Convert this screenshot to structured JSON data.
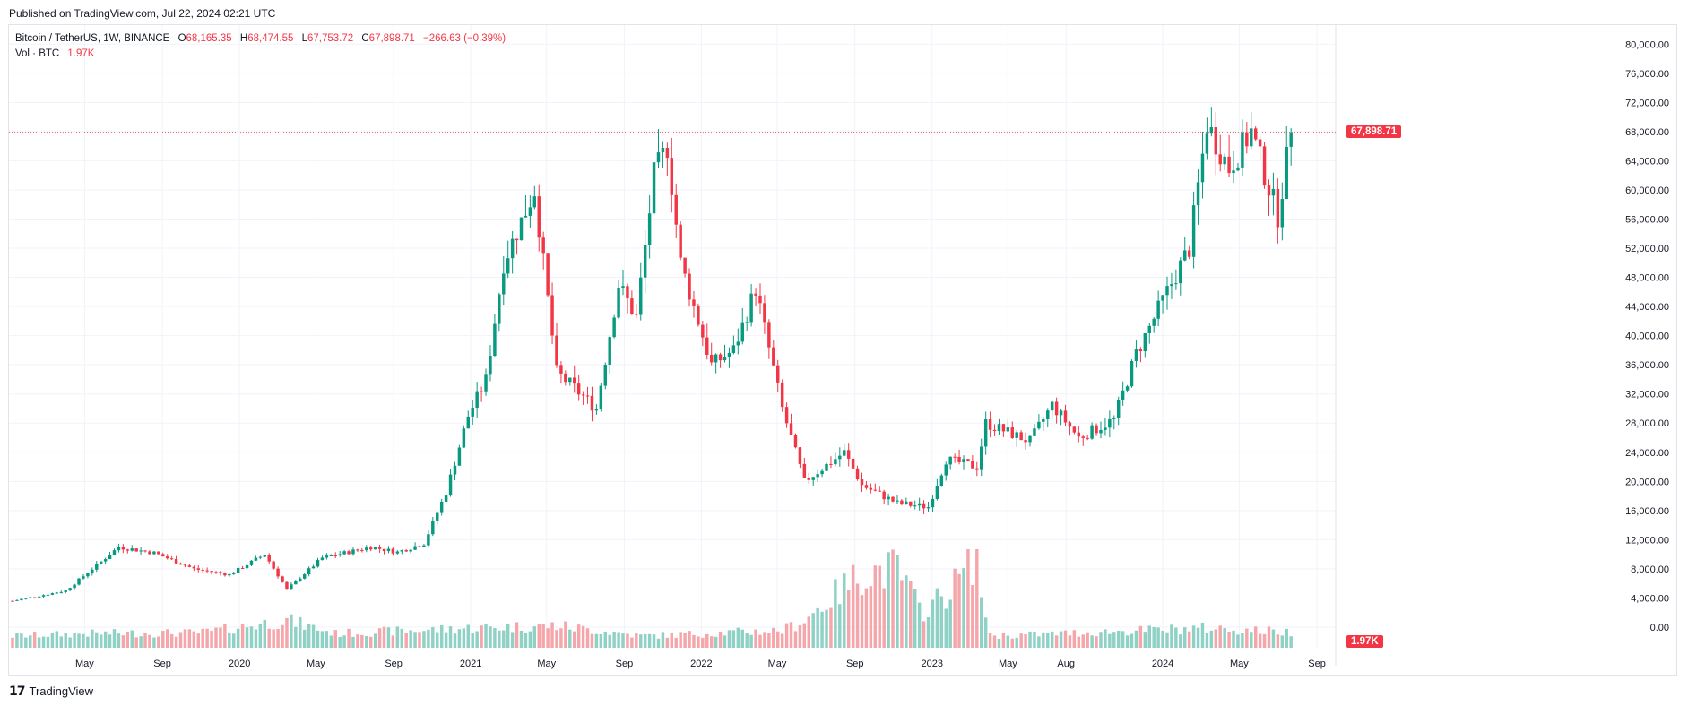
{
  "header": {
    "published": "Published on TradingView.com, Jul 22, 2024 02:21 UTC"
  },
  "legend": {
    "symbol": "Bitcoin / TetherUS, 1W, BINANCE",
    "open_label": "O",
    "open": "68,165.35",
    "high_label": "H",
    "high": "68,474.55",
    "low_label": "L",
    "low": "67,753.72",
    "close_label": "C",
    "close": "67,898.71",
    "change": "−266.63 (−0.39%)",
    "vol_label": "Vol · BTC",
    "vol_value": "1.97K"
  },
  "footer": {
    "brand": "TradingView",
    "logo_icon": "tradingview-logo-icon"
  },
  "colors": {
    "up": "#089981",
    "down": "#f23645",
    "vol_up": "#8fd1c5",
    "vol_down": "#f5a6aa",
    "grid": "#f0f3fa"
  },
  "chart_data": {
    "type": "candlestick",
    "symbol": "BTCUSDT",
    "interval": "1W",
    "y_ticks": [
      0,
      4000,
      8000,
      12000,
      16000,
      20000,
      24000,
      28000,
      32000,
      36000,
      40000,
      44000,
      48000,
      52000,
      56000,
      60000,
      64000,
      68000,
      72000,
      76000,
      80000
    ],
    "y_tick_labels": [
      "0.00",
      "4,000.00",
      "8,000.00",
      "12,000.00",
      "16,000.00",
      "20,000.00",
      "24,000.00",
      "28,000.00",
      "32,000.00",
      "36,000.00",
      "40,000.00",
      "44,000.00",
      "48,000.00",
      "52,000.00",
      "56,000.00",
      "60,000.00",
      "64,000.00",
      "68,000.00",
      "72,000.00",
      "76,000.00",
      "80,000.00"
    ],
    "x_ticks": [
      "2019-05-01",
      "2019-09-01",
      "2020-01-01",
      "2020-05-01",
      "2020-09-01",
      "2021-01-01",
      "2021-05-01",
      "2021-09-01",
      "2022-01-01",
      "2022-05-01",
      "2022-09-01",
      "2023-01-01",
      "2023-05-01",
      "2023-08-01",
      "2024-01-01",
      "2024-05-01",
      "2024-09-01"
    ],
    "x_tick_labels": [
      "May",
      "Sep",
      "2020",
      "May",
      "Sep",
      "2021",
      "May",
      "Sep",
      "2022",
      "May",
      "Sep",
      "2023",
      "May",
      "Aug",
      "2024",
      "May",
      "Sep"
    ],
    "last_price": 67898.71,
    "last_price_label": "67,898.71",
    "last_volume_label": "1.97K",
    "anchors_close": [
      [
        "2019-01-07",
        3600
      ],
      [
        "2019-04-01",
        5000
      ],
      [
        "2019-06-24",
        11000
      ],
      [
        "2019-08-19",
        10200
      ],
      [
        "2019-10-21",
        8000
      ],
      [
        "2019-12-16",
        7200
      ],
      [
        "2020-02-10",
        10000
      ],
      [
        "2020-03-16",
        5200
      ],
      [
        "2020-05-11",
        9500
      ],
      [
        "2020-07-27",
        11000
      ],
      [
        "2020-09-07",
        10300
      ],
      [
        "2020-10-19",
        11500
      ],
      [
        "2020-11-23",
        18500
      ],
      [
        "2020-12-28",
        29000
      ],
      [
        "2021-01-25",
        34000
      ],
      [
        "2021-02-22",
        50000
      ],
      [
        "2021-04-12",
        60000
      ],
      [
        "2021-05-17",
        35000
      ],
      [
        "2021-07-19",
        30000
      ],
      [
        "2021-08-23",
        47000
      ],
      [
        "2021-09-20",
        42500
      ],
      [
        "2021-10-18",
        62000
      ],
      [
        "2021-11-08",
        66000
      ],
      [
        "2021-11-29",
        50000
      ],
      [
        "2022-01-17",
        36000
      ],
      [
        "2022-02-21",
        38000
      ],
      [
        "2022-03-28",
        46500
      ],
      [
        "2022-05-09",
        30000
      ],
      [
        "2022-06-13",
        20000
      ],
      [
        "2022-08-15",
        24000
      ],
      [
        "2022-09-12",
        19500
      ],
      [
        "2022-11-07",
        17000
      ],
      [
        "2022-12-26",
        16500
      ],
      [
        "2023-01-23",
        23000
      ],
      [
        "2023-03-13",
        22000
      ],
      [
        "2023-03-27",
        28000
      ],
      [
        "2023-06-05",
        25500
      ],
      [
        "2023-07-10",
        30500
      ],
      [
        "2023-08-21",
        26000
      ],
      [
        "2023-10-16",
        28500
      ],
      [
        "2023-11-20",
        37500
      ],
      [
        "2024-01-08",
        46000
      ],
      [
        "2024-02-12",
        52000
      ],
      [
        "2024-03-11",
        69000
      ],
      [
        "2024-04-15",
        63000
      ],
      [
        "2024-05-20",
        68000
      ],
      [
        "2024-07-01",
        56500
      ],
      [
        "2024-07-22",
        67898.71
      ]
    ],
    "anchors_volume_k": [
      [
        "2019-01-07",
        1.5
      ],
      [
        "2019-05-01",
        1.8
      ],
      [
        "2019-11-01",
        1.9
      ],
      [
        "2020-03-16",
        3.5
      ],
      [
        "2020-06-01",
        1.8
      ],
      [
        "2021-01-04",
        2.5
      ],
      [
        "2021-05-17",
        2.8
      ],
      [
        "2021-10-01",
        1.5
      ],
      [
        "2022-05-09",
        2.2
      ],
      [
        "2022-06-13",
        3.5
      ],
      [
        "2022-09-12",
        9.5
      ],
      [
        "2022-11-07",
        10.0
      ],
      [
        "2022-12-15",
        4.5
      ],
      [
        "2023-02-01",
        7.5
      ],
      [
        "2023-03-13",
        12.0
      ],
      [
        "2023-03-27",
        3.0
      ],
      [
        "2023-04-10",
        1.5
      ],
      [
        "2024-03-11",
        2.5
      ],
      [
        "2024-07-22",
        1.97
      ]
    ]
  }
}
